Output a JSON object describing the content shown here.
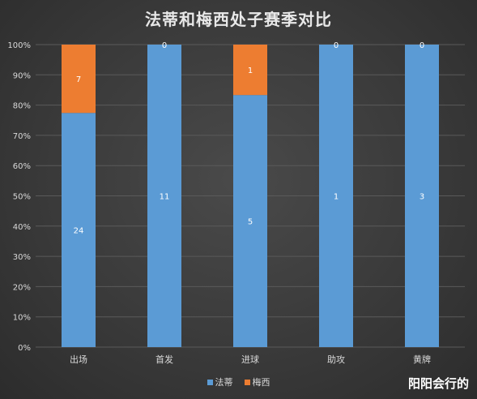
{
  "title": "法蒂和梅西处子赛季对比",
  "watermark": "阳阳会行的",
  "colors": {
    "fati": "#5b9bd5",
    "messi": "#ed7d31",
    "grid": "#5a5a5a",
    "text": "#d9d9d9"
  },
  "chart_data": {
    "type": "bar",
    "stacked": "percent",
    "title": "法蒂和梅西处子赛季对比",
    "categories": [
      "出场",
      "首发",
      "进球",
      "助攻",
      "黄牌"
    ],
    "series": [
      {
        "name": "法蒂",
        "values": [
          24,
          11,
          5,
          1,
          3
        ],
        "color": "#5b9bd5"
      },
      {
        "name": "梅西",
        "values": [
          7,
          0,
          1,
          0,
          0
        ],
        "color": "#ed7d31"
      }
    ],
    "yticks": [
      "0%",
      "10%",
      "20%",
      "30%",
      "40%",
      "50%",
      "60%",
      "70%",
      "80%",
      "90%",
      "100%"
    ],
    "ylim": [
      0,
      100
    ],
    "grid": true,
    "legend_position": "bottom"
  }
}
